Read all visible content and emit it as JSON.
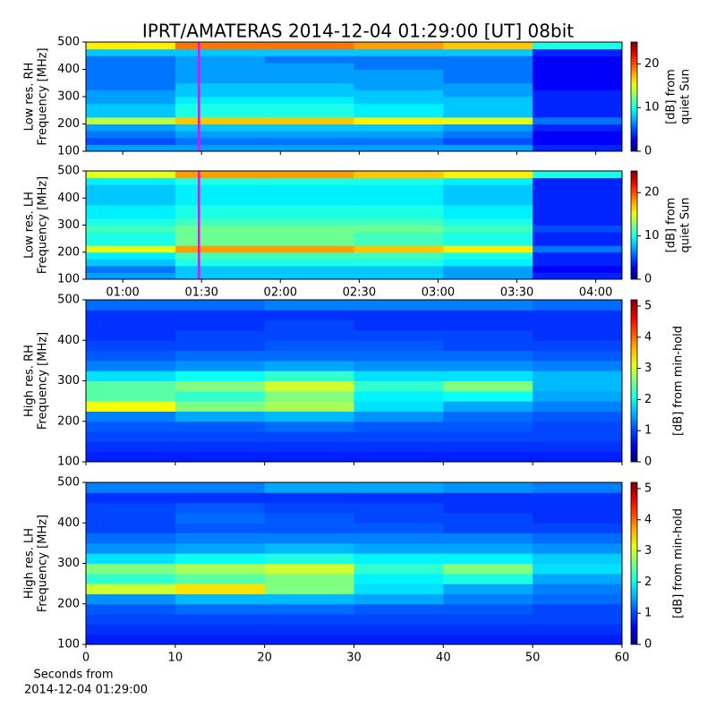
{
  "title": "IPRT/AMATERAS 2014-12-04 01:29:00 [UT]   08bit",
  "chart_data": [
    {
      "type": "heatmap",
      "ylabel": [
        "Low res. RH",
        "Frequency [MHz]"
      ],
      "colorbar_label": [
        "[dB] from",
        "quiet Sun"
      ],
      "xlim": [
        "00:46",
        "04:10"
      ],
      "xticks": [
        "01:00",
        "01:30",
        "02:00",
        "02:30",
        "03:00",
        "03:30",
        "04:00"
      ],
      "xticklabels": false,
      "ylim": [
        100,
        500
      ],
      "yticks": [
        100,
        200,
        300,
        400,
        500
      ],
      "clim": [
        0,
        25
      ],
      "cticks": [
        0,
        10,
        20
      ],
      "colormap": "jet",
      "markers": [
        {
          "x": "01:29",
          "color": "#ff00ff"
        }
      ],
      "z": [
        [
          7,
          7,
          7,
          7,
          7,
          4
        ],
        [
          5,
          6,
          6,
          6,
          5,
          3
        ],
        [
          6,
          7,
          7,
          7,
          6,
          3
        ],
        [
          7,
          8,
          8,
          8,
          7,
          4
        ],
        [
          14,
          17,
          17,
          16,
          15,
          6
        ],
        [
          8,
          10,
          10,
          9,
          8,
          4
        ],
        [
          8,
          10,
          10,
          9,
          8,
          4
        ],
        [
          7,
          9,
          9,
          8,
          8,
          4
        ],
        [
          7,
          8,
          8,
          8,
          7,
          4
        ],
        [
          6,
          8,
          8,
          7,
          7,
          3
        ],
        [
          6,
          7,
          7,
          7,
          6,
          3
        ],
        [
          6,
          7,
          7,
          7,
          6,
          3
        ],
        [
          6,
          7,
          7,
          6,
          6,
          3
        ],
        [
          6,
          7,
          6,
          6,
          6,
          3
        ],
        [
          8,
          8,
          8,
          8,
          8,
          4
        ],
        [
          16,
          19,
          19,
          18,
          17,
          10
        ]
      ]
    },
    {
      "type": "heatmap",
      "ylabel": [
        "Low res. LH",
        "Frequency [MHz]"
      ],
      "colorbar_label": [
        "[dB] from",
        "quiet Sun"
      ],
      "xlim": [
        "00:46",
        "04:10"
      ],
      "xticks": [
        "01:00",
        "01:30",
        "02:00",
        "02:30",
        "03:00",
        "03:30",
        "04:00"
      ],
      "xticklabels": true,
      "ylim": [
        100,
        500
      ],
      "yticks": [
        100,
        200,
        300,
        400,
        500
      ],
      "clim": [
        0,
        25
      ],
      "cticks": [
        0,
        10,
        20
      ],
      "colormap": "jet",
      "markers": [
        {
          "x": "01:29",
          "color": "#ff00ff"
        }
      ],
      "z": [
        [
          7,
          8,
          8,
          8,
          7,
          4
        ],
        [
          6,
          8,
          8,
          8,
          7,
          3
        ],
        [
          8,
          10,
          10,
          10,
          9,
          4
        ],
        [
          9,
          11,
          11,
          11,
          10,
          4
        ],
        [
          15,
          18,
          18,
          17,
          16,
          6
        ],
        [
          10,
          12,
          12,
          11,
          10,
          4
        ],
        [
          10,
          12,
          12,
          11,
          10,
          4
        ],
        [
          11,
          12,
          12,
          12,
          11,
          5
        ],
        [
          10,
          11,
          11,
          11,
          10,
          4
        ],
        [
          9,
          10,
          10,
          10,
          9,
          4
        ],
        [
          9,
          10,
          10,
          10,
          9,
          4
        ],
        [
          8,
          9,
          9,
          9,
          8,
          4
        ],
        [
          8,
          9,
          9,
          9,
          8,
          4
        ],
        [
          8,
          9,
          9,
          9,
          8,
          4
        ],
        [
          9,
          10,
          10,
          10,
          9,
          4
        ],
        [
          15,
          18,
          18,
          17,
          16,
          10
        ]
      ]
    },
    {
      "type": "heatmap",
      "ylabel": [
        "High res. RH",
        "Frequency [MHz]"
      ],
      "colorbar_label": [
        "[dB] from min-hold"
      ],
      "xlim": [
        0,
        60
      ],
      "xticks": [
        0,
        10,
        20,
        30,
        40,
        50,
        60
      ],
      "xticklabels": false,
      "ylim": [
        100,
        500
      ],
      "yticks": [
        100,
        200,
        300,
        400,
        500
      ],
      "clim": [
        0,
        5.2
      ],
      "cticks": [
        0,
        1,
        2,
        3,
        4,
        5
      ],
      "colormap": "jet",
      "z": [
        [
          0.8,
          0.8,
          0.8,
          0.8,
          0.8,
          0.8
        ],
        [
          0.9,
          0.9,
          0.9,
          0.9,
          0.9,
          0.9
        ],
        [
          1,
          1,
          1,
          1,
          1,
          1
        ],
        [
          1.1,
          1.1,
          1.2,
          1.1,
          1.1,
          1
        ],
        [
          1.3,
          1.5,
          1.6,
          1.4,
          1.2,
          1.1
        ],
        [
          3.2,
          2.6,
          2.8,
          1.8,
          1.5,
          1.3
        ],
        [
          2.4,
          2.2,
          2.6,
          1.9,
          2,
          1.5
        ],
        [
          2.4,
          2.6,
          3,
          2.2,
          2.6,
          1.6
        ],
        [
          1.8,
          2,
          2.2,
          1.8,
          1.8,
          1.6
        ],
        [
          1.3,
          1.4,
          1.5,
          1.4,
          1.4,
          1.3
        ],
        [
          1.1,
          1.2,
          1.2,
          1.2,
          1.2,
          1.1
        ],
        [
          1,
          1,
          1.1,
          1.1,
          1,
          1
        ],
        [
          0.9,
          1,
          1,
          1,
          1,
          0.9
        ],
        [
          0.9,
          0.9,
          1,
          0.9,
          0.9,
          0.9
        ],
        [
          0.9,
          0.9,
          0.9,
          0.9,
          0.9,
          0.9
        ],
        [
          1.2,
          1.2,
          1.3,
          1.3,
          1.3,
          1.2
        ]
      ]
    },
    {
      "type": "heatmap",
      "ylabel": [
        "High res. LH",
        "Frequency [MHz]"
      ],
      "colorbar_label": [
        "[dB] from min-hold"
      ],
      "xlim": [
        0,
        60
      ],
      "xticks": [
        0,
        10,
        20,
        30,
        40,
        50,
        60
      ],
      "xticklabels": true,
      "xlabel": [
        "Seconds from",
        "2014-12-04 01:29:00"
      ],
      "ylim": [
        100,
        500
      ],
      "yticks": [
        100,
        200,
        300,
        400,
        500
      ],
      "clim": [
        0,
        5.2
      ],
      "cticks": [
        0,
        1,
        2,
        3,
        4,
        5
      ],
      "colormap": "jet",
      "z": [
        [
          0.8,
          0.8,
          0.8,
          0.8,
          0.8,
          0.8
        ],
        [
          0.9,
          0.9,
          0.9,
          0.9,
          0.9,
          0.9
        ],
        [
          1,
          1,
          1,
          1,
          1,
          1
        ],
        [
          1.1,
          1.2,
          1.2,
          1.1,
          1.1,
          1
        ],
        [
          1.4,
          1.6,
          1.6,
          1.5,
          1.3,
          1.2
        ],
        [
          3,
          3.4,
          2.6,
          1.8,
          1.5,
          1.3
        ],
        [
          2.2,
          2.4,
          2.6,
          1.9,
          2.1,
          1.5
        ],
        [
          2.6,
          2.8,
          3,
          2.2,
          2.6,
          1.8
        ],
        [
          1.8,
          2,
          2.1,
          1.9,
          1.9,
          1.7
        ],
        [
          1.4,
          1.5,
          1.6,
          1.5,
          1.5,
          1.4
        ],
        [
          1.2,
          1.3,
          1.3,
          1.3,
          1.3,
          1.2
        ],
        [
          1,
          1.1,
          1.1,
          1.1,
          1,
          1
        ],
        [
          1,
          1.2,
          1.1,
          1,
          1,
          0.9
        ],
        [
          1,
          1.1,
          1,
          1,
          0.9,
          0.9
        ],
        [
          0.9,
          0.9,
          0.9,
          0.9,
          0.9,
          0.9
        ],
        [
          1.3,
          1.3,
          1.5,
          1.5,
          1.4,
          1.3
        ]
      ]
    }
  ]
}
